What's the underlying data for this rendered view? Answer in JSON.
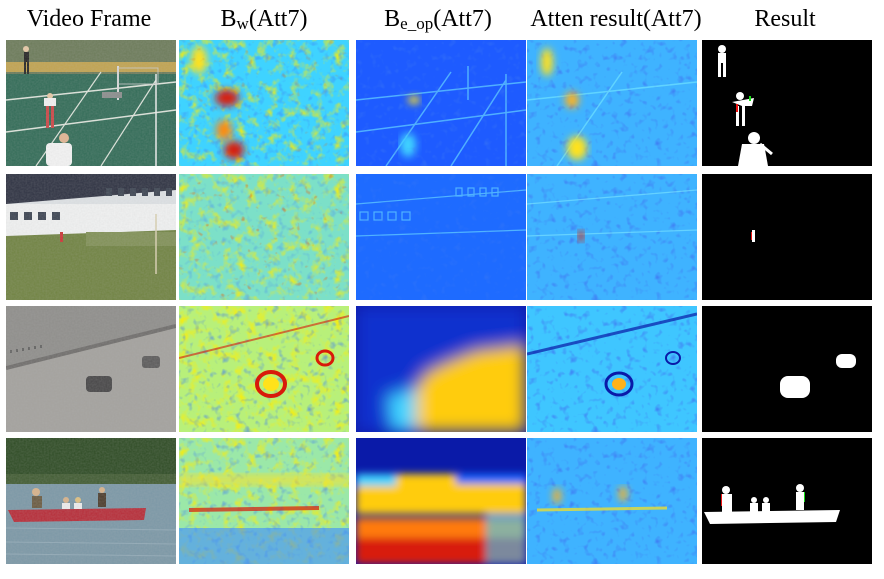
{
  "headers": {
    "col0": "Video Frame",
    "col1": {
      "main": "B",
      "sub": "w",
      "tail": "(Att7)"
    },
    "col2": {
      "main": "B",
      "sub": "e_op",
      "tail": "(Att7)"
    },
    "col3": "Atten result(Att7)",
    "col4": "Result"
  },
  "rows": [
    {
      "scene": "badminton court"
    },
    {
      "scene": "building lawn"
    },
    {
      "scene": "road with cars"
    },
    {
      "scene": "canoe on lake"
    }
  ],
  "colors": {
    "jet_dark_blue": "#0a1aa8",
    "jet_blue": "#1e6bff",
    "jet_cyan": "#3fd3ff",
    "jet_yellow": "#ffe21a",
    "jet_red": "#d81a0a",
    "mask_white": "#ffffff",
    "mask_black": "#000000"
  }
}
